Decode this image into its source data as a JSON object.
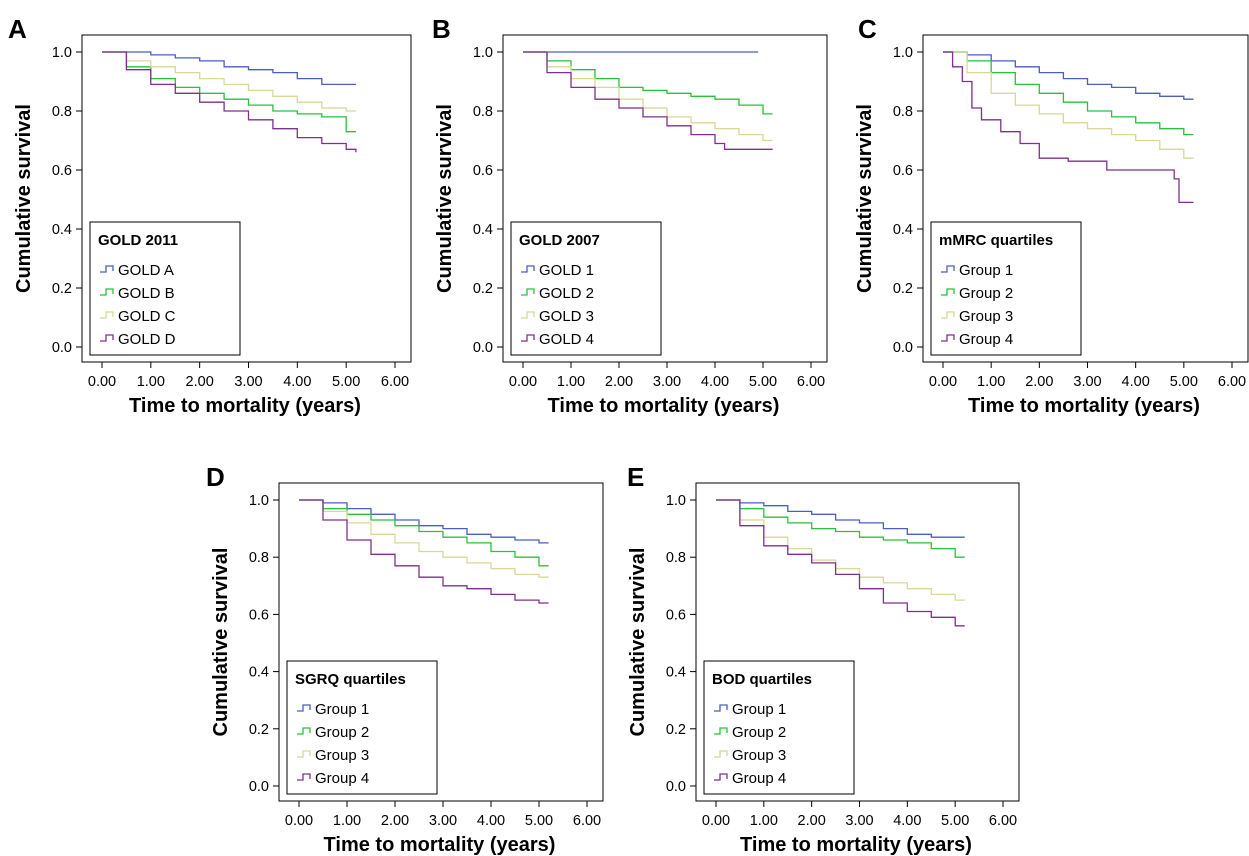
{
  "chart_data": [
    {
      "panel": "A",
      "type": "line",
      "xlabel": "Time to mortality (years)",
      "ylabel": "Cumulative survival",
      "xlim": [
        0,
        6
      ],
      "ylim": [
        0,
        1
      ],
      "xticks": [
        "0.00",
        "1.00",
        "2.00",
        "3.00",
        "4.00",
        "5.00",
        "6.00"
      ],
      "yticks": [
        "0.0",
        "0.2",
        "0.4",
        "0.6",
        "0.8",
        "1.0"
      ],
      "grid": false,
      "legend": {
        "title": "GOLD 2011",
        "position": "bottom-left"
      },
      "series": [
        {
          "name": "GOLD A",
          "color": "#4a5fc1",
          "x": [
            0,
            0.5,
            1.0,
            1.5,
            2.0,
            2.5,
            3.0,
            3.5,
            4.0,
            4.5,
            5.0,
            5.2
          ],
          "y": [
            1.0,
            1.0,
            0.99,
            0.98,
            0.97,
            0.95,
            0.94,
            0.93,
            0.91,
            0.89,
            0.89,
            0.89
          ]
        },
        {
          "name": "GOLD B",
          "color": "#27c23a",
          "x": [
            0,
            0.5,
            1.0,
            1.5,
            2.0,
            2.5,
            3.0,
            3.5,
            4.0,
            4.5,
            5.0,
            5.2
          ],
          "y": [
            1.0,
            0.95,
            0.91,
            0.88,
            0.86,
            0.84,
            0.82,
            0.8,
            0.79,
            0.78,
            0.73,
            0.73
          ]
        },
        {
          "name": "GOLD C",
          "color": "#d8d898",
          "x": [
            0,
            0.5,
            1.0,
            1.5,
            2.0,
            2.5,
            3.0,
            3.5,
            4.0,
            4.5,
            5.0,
            5.2
          ],
          "y": [
            1.0,
            0.97,
            0.95,
            0.93,
            0.91,
            0.89,
            0.87,
            0.85,
            0.83,
            0.81,
            0.8,
            0.8
          ]
        },
        {
          "name": "GOLD D",
          "color": "#7f2f8f",
          "x": [
            0,
            0.5,
            1.0,
            1.5,
            2.0,
            2.5,
            3.0,
            3.5,
            4.0,
            4.5,
            5.0,
            5.2
          ],
          "y": [
            1.0,
            0.94,
            0.89,
            0.86,
            0.83,
            0.8,
            0.77,
            0.74,
            0.71,
            0.69,
            0.67,
            0.66
          ]
        }
      ]
    },
    {
      "panel": "B",
      "type": "line",
      "xlabel": "Time to mortality (years)",
      "ylabel": "Cumulative survival",
      "xlim": [
        0,
        6
      ],
      "ylim": [
        0,
        1
      ],
      "xticks": [
        "0.00",
        "1.00",
        "2.00",
        "3.00",
        "4.00",
        "5.00",
        "6.00"
      ],
      "yticks": [
        "0.0",
        "0.2",
        "0.4",
        "0.6",
        "0.8",
        "1.0"
      ],
      "grid": false,
      "legend": {
        "title": "GOLD 2007",
        "position": "bottom-left"
      },
      "series": [
        {
          "name": "GOLD 1",
          "color": "#4a5fc1",
          "x": [
            0,
            1.0,
            2.0,
            3.0,
            4.0,
            4.9
          ],
          "y": [
            1.0,
            1.0,
            1.0,
            1.0,
            1.0,
            1.0
          ]
        },
        {
          "name": "GOLD 2",
          "color": "#27c23a",
          "x": [
            0,
            0.5,
            1.0,
            1.5,
            2.0,
            2.5,
            3.0,
            3.5,
            4.0,
            4.5,
            5.0,
            5.2
          ],
          "y": [
            1.0,
            0.97,
            0.94,
            0.91,
            0.88,
            0.87,
            0.86,
            0.85,
            0.84,
            0.82,
            0.79,
            0.79
          ]
        },
        {
          "name": "GOLD 3",
          "color": "#d8d898",
          "x": [
            0,
            0.5,
            1.0,
            1.5,
            2.0,
            2.5,
            3.0,
            3.5,
            4.0,
            4.5,
            5.0,
            5.2
          ],
          "y": [
            1.0,
            0.95,
            0.91,
            0.88,
            0.84,
            0.81,
            0.78,
            0.76,
            0.74,
            0.72,
            0.7,
            0.7
          ]
        },
        {
          "name": "GOLD 4",
          "color": "#7f2f8f",
          "x": [
            0,
            0.5,
            1.0,
            1.5,
            2.0,
            2.5,
            3.0,
            3.5,
            4.0,
            4.2,
            5.2
          ],
          "y": [
            1.0,
            0.93,
            0.88,
            0.84,
            0.81,
            0.78,
            0.75,
            0.72,
            0.69,
            0.67,
            0.67
          ]
        }
      ]
    },
    {
      "panel": "C",
      "type": "line",
      "xlabel": "Time to mortality (years)",
      "ylabel": "Cumulative survival",
      "xlim": [
        0,
        6
      ],
      "ylim": [
        0,
        1
      ],
      "xticks": [
        "0.00",
        "1.00",
        "2.00",
        "3.00",
        "4.00",
        "5.00",
        "6.00"
      ],
      "yticks": [
        "0.0",
        "0.2",
        "0.4",
        "0.6",
        "0.8",
        "1.0"
      ],
      "grid": false,
      "legend": {
        "title": "mMRC quartiles",
        "position": "bottom-left"
      },
      "series": [
        {
          "name": "Group 1",
          "color": "#4a5fc1",
          "x": [
            0,
            0.5,
            1.0,
            1.5,
            2.0,
            2.5,
            3.0,
            3.5,
            4.0,
            4.5,
            5.0,
            5.2
          ],
          "y": [
            1.0,
            0.99,
            0.97,
            0.95,
            0.93,
            0.91,
            0.89,
            0.88,
            0.86,
            0.85,
            0.84,
            0.84
          ]
        },
        {
          "name": "Group 2",
          "color": "#27c23a",
          "x": [
            0,
            0.5,
            1.0,
            1.5,
            2.0,
            2.5,
            3.0,
            3.5,
            4.0,
            4.5,
            5.0,
            5.2
          ],
          "y": [
            1.0,
            0.97,
            0.93,
            0.89,
            0.86,
            0.83,
            0.8,
            0.78,
            0.76,
            0.74,
            0.72,
            0.72
          ]
        },
        {
          "name": "Group 3",
          "color": "#d8d898",
          "x": [
            0,
            0.5,
            1.0,
            1.5,
            2.0,
            2.5,
            3.0,
            3.5,
            4.0,
            4.5,
            5.0,
            5.2
          ],
          "y": [
            1.0,
            0.93,
            0.86,
            0.82,
            0.79,
            0.76,
            0.74,
            0.72,
            0.7,
            0.67,
            0.64,
            0.64
          ]
        },
        {
          "name": "Group 4",
          "color": "#7f2f8f",
          "x": [
            0,
            0.2,
            0.4,
            0.6,
            0.8,
            1.2,
            1.6,
            2.0,
            2.6,
            3.4,
            4.8,
            4.9,
            5.2
          ],
          "y": [
            1.0,
            0.95,
            0.9,
            0.81,
            0.77,
            0.73,
            0.69,
            0.64,
            0.63,
            0.6,
            0.57,
            0.49,
            0.49
          ]
        }
      ]
    },
    {
      "panel": "D",
      "type": "line",
      "xlabel": "Time to mortality (years)",
      "ylabel": "Cumulative survival",
      "xlim": [
        0,
        6
      ],
      "ylim": [
        0,
        1
      ],
      "xticks": [
        "0.00",
        "1.00",
        "2.00",
        "3.00",
        "4.00",
        "5.00",
        "6.00"
      ],
      "yticks": [
        "0.0",
        "0.2",
        "0.4",
        "0.6",
        "0.8",
        "1.0"
      ],
      "grid": false,
      "legend": {
        "title": "SGRQ quartiles",
        "position": "bottom-left"
      },
      "series": [
        {
          "name": "Group 1",
          "color": "#4a5fc1",
          "x": [
            0,
            0.5,
            1.0,
            1.5,
            2.0,
            2.5,
            3.0,
            3.5,
            4.0,
            4.5,
            5.0,
            5.2
          ],
          "y": [
            1.0,
            0.99,
            0.97,
            0.95,
            0.93,
            0.91,
            0.9,
            0.88,
            0.87,
            0.86,
            0.85,
            0.85
          ]
        },
        {
          "name": "Group 2",
          "color": "#27c23a",
          "x": [
            0,
            0.5,
            1.0,
            1.5,
            2.0,
            2.5,
            3.0,
            3.5,
            4.0,
            4.5,
            5.0,
            5.2
          ],
          "y": [
            1.0,
            0.97,
            0.95,
            0.93,
            0.91,
            0.89,
            0.87,
            0.85,
            0.82,
            0.8,
            0.77,
            0.77
          ]
        },
        {
          "name": "Group 3",
          "color": "#d8d898",
          "x": [
            0,
            0.5,
            1.0,
            1.5,
            2.0,
            2.5,
            3.0,
            3.5,
            4.0,
            4.5,
            5.0,
            5.2
          ],
          "y": [
            1.0,
            0.96,
            0.92,
            0.88,
            0.85,
            0.82,
            0.8,
            0.78,
            0.76,
            0.74,
            0.73,
            0.73
          ]
        },
        {
          "name": "Group 4",
          "color": "#7f2f8f",
          "x": [
            0,
            0.5,
            1.0,
            1.5,
            2.0,
            2.5,
            3.0,
            3.5,
            4.0,
            4.5,
            5.0,
            5.2
          ],
          "y": [
            1.0,
            0.93,
            0.86,
            0.81,
            0.77,
            0.73,
            0.7,
            0.69,
            0.67,
            0.65,
            0.64,
            0.64
          ]
        }
      ]
    },
    {
      "panel": "E",
      "type": "line",
      "xlabel": "Time to mortality (years)",
      "ylabel": "Cumulative survival",
      "xlim": [
        0,
        6
      ],
      "ylim": [
        0,
        1
      ],
      "xticks": [
        "0.00",
        "1.00",
        "2.00",
        "3.00",
        "4.00",
        "5.00",
        "6.00"
      ],
      "yticks": [
        "0.0",
        "0.2",
        "0.4",
        "0.6",
        "0.8",
        "1.0"
      ],
      "grid": false,
      "legend": {
        "title": "BOD quartiles",
        "position": "bottom-left"
      },
      "series": [
        {
          "name": "Group 1",
          "color": "#4a5fc1",
          "x": [
            0,
            0.5,
            1.0,
            1.5,
            2.0,
            2.5,
            3.0,
            3.5,
            4.0,
            4.5,
            5.0,
            5.2
          ],
          "y": [
            1.0,
            0.99,
            0.98,
            0.96,
            0.95,
            0.93,
            0.92,
            0.9,
            0.88,
            0.87,
            0.87,
            0.87
          ]
        },
        {
          "name": "Group 2",
          "color": "#27c23a",
          "x": [
            0,
            0.5,
            1.0,
            1.5,
            2.0,
            2.5,
            3.0,
            3.5,
            4.0,
            4.5,
            5.0,
            5.2
          ],
          "y": [
            1.0,
            0.97,
            0.94,
            0.92,
            0.9,
            0.89,
            0.87,
            0.86,
            0.85,
            0.83,
            0.8,
            0.8
          ]
        },
        {
          "name": "Group 3",
          "color": "#d8d898",
          "x": [
            0,
            0.5,
            1.0,
            1.5,
            2.0,
            2.5,
            3.0,
            3.5,
            4.0,
            4.5,
            5.0,
            5.2
          ],
          "y": [
            1.0,
            0.93,
            0.87,
            0.83,
            0.79,
            0.76,
            0.73,
            0.71,
            0.69,
            0.67,
            0.65,
            0.65
          ]
        },
        {
          "name": "Group 4",
          "color": "#7f2f8f",
          "x": [
            0,
            0.5,
            1.0,
            1.5,
            2.0,
            2.5,
            3.0,
            3.5,
            4.0,
            4.5,
            5.0,
            5.2
          ],
          "y": [
            1.0,
            0.91,
            0.84,
            0.81,
            0.78,
            0.74,
            0.69,
            0.64,
            0.61,
            0.59,
            0.56,
            0.56
          ]
        }
      ]
    }
  ]
}
